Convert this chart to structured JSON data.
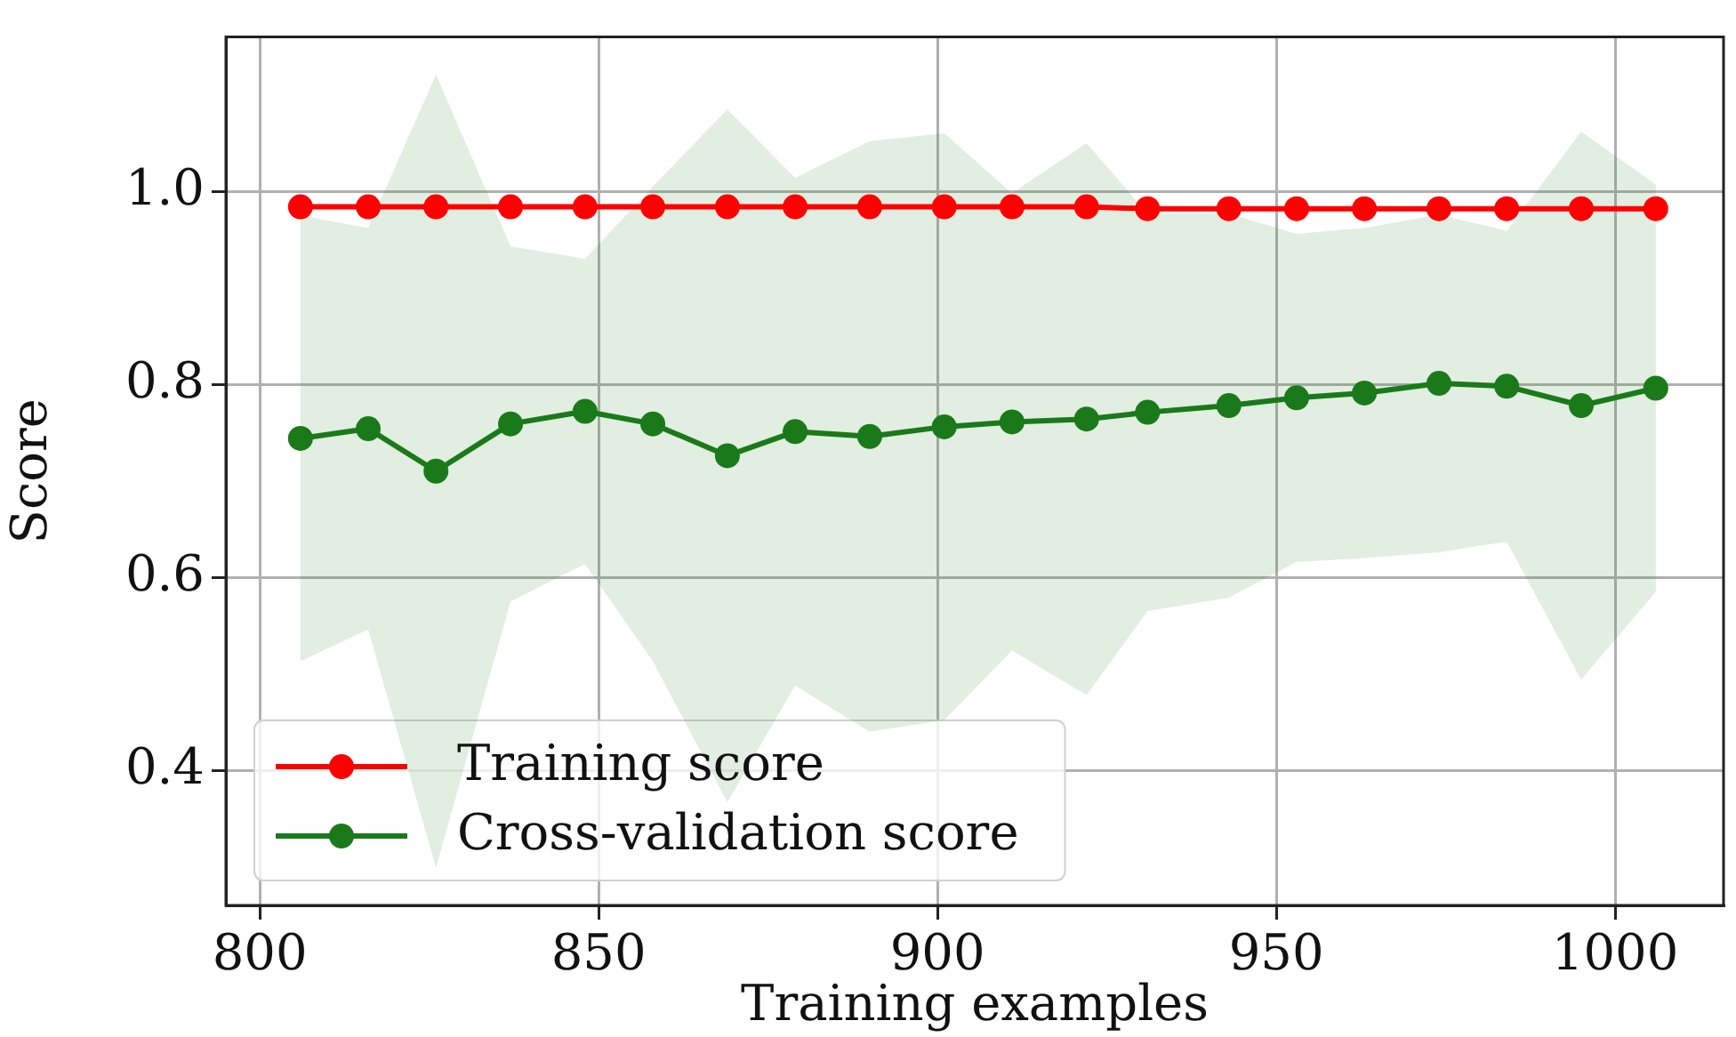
{
  "chart_data": {
    "type": "line",
    "xlabel": "Training examples",
    "ylabel": "Score",
    "x": [
      806,
      816,
      826,
      837,
      848,
      858,
      869,
      879,
      890,
      901,
      911,
      922,
      931,
      943,
      953,
      963,
      974,
      984,
      995,
      1006
    ],
    "series": [
      {
        "name": "Training score",
        "color": "#ff0000",
        "values": [
          0.984,
          0.984,
          0.984,
          0.984,
          0.984,
          0.984,
          0.984,
          0.984,
          0.984,
          0.984,
          0.984,
          0.984,
          0.982,
          0.982,
          0.982,
          0.982,
          0.982,
          0.982,
          0.982,
          0.982
        ]
      },
      {
        "name": "Cross-validation score",
        "color": "#1a7a1a",
        "values": [
          0.744,
          0.754,
          0.71,
          0.759,
          0.772,
          0.759,
          0.726,
          0.751,
          0.746,
          0.756,
          0.761,
          0.764,
          0.771,
          0.778,
          0.786,
          0.791,
          0.801,
          0.798,
          0.778,
          0.796
        ],
        "lower": [
          0.513,
          0.546,
          0.299,
          0.575,
          0.614,
          0.513,
          0.367,
          0.488,
          0.44,
          0.452,
          0.524,
          0.478,
          0.565,
          0.579,
          0.616,
          0.62,
          0.626,
          0.637,
          0.494,
          0.585
        ],
        "upper": [
          0.975,
          0.962,
          1.121,
          0.943,
          0.93,
          1.005,
          1.085,
          1.014,
          1.052,
          1.06,
          0.998,
          1.05,
          0.977,
          0.977,
          0.956,
          0.962,
          0.976,
          0.959,
          1.062,
          1.007
        ]
      }
    ],
    "xlim": [
      795,
      1016
    ],
    "xticks": [
      800,
      850,
      900,
      950,
      1000
    ],
    "ylim": [
      0.26,
      1.16
    ],
    "yticks": [
      {
        "value": 0.4,
        "label": "0.4"
      },
      {
        "value": 0.6,
        "label": "0.6"
      },
      {
        "value": 0.8,
        "label": "0.8"
      },
      {
        "value": 1.0,
        "label": "1.0"
      }
    ],
    "grid": true,
    "legend": "bottom left",
    "marker": "circle",
    "line_style": "solid"
  }
}
